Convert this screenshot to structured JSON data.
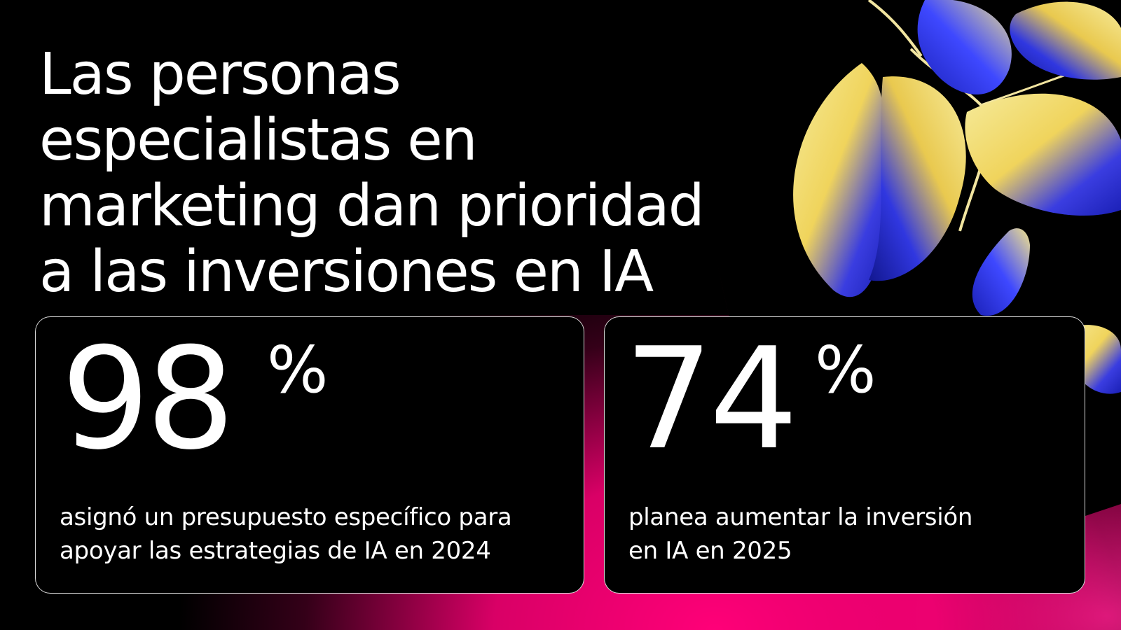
{
  "headline": {
    "line1": "Las personas",
    "line2": "especialistas en",
    "line3": "marketing dan prioridad",
    "line4": "a las inversiones en IA"
  },
  "stats": [
    {
      "value": "98",
      "unit": "%",
      "description_line1": "asignó un presupuesto específico para",
      "description_line2": "apoyar las estrategias de IA en 2024"
    },
    {
      "value": "74",
      "unit": "%",
      "description_line1": "planea aumentar la inversión",
      "description_line2": "en IA en 2025"
    }
  ],
  "colors": {
    "background": "#000000",
    "accent_pink": "#ff0078",
    "text": "#ffffff",
    "card_border": "#d9d9d9",
    "flower_blue": "#2a2fd6",
    "flower_yellow": "#f3e48a"
  },
  "decorations": {
    "flower": "abstract-flower-illustration"
  }
}
